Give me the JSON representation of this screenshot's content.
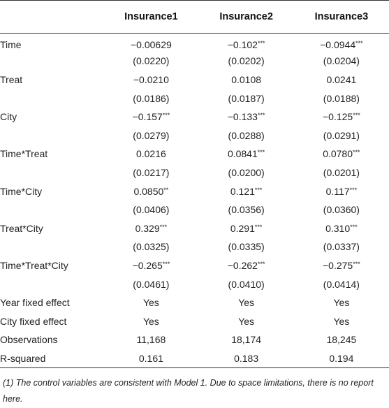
{
  "table": {
    "columns": [
      "",
      "Insurance1",
      "Insurance2",
      "Insurance3"
    ],
    "rows": [
      {
        "label": "Time",
        "values": [
          {
            "v": "−0.00629",
            "s": ""
          },
          {
            "v": "−0.102",
            "s": "***"
          },
          {
            "v": "−0.0944",
            "s": "***"
          }
        ]
      },
      {
        "label": "",
        "values": [
          {
            "v": "(0.0220)",
            "s": ""
          },
          {
            "v": "(0.0202)",
            "s": ""
          },
          {
            "v": "(0.0204)",
            "s": ""
          }
        ]
      },
      {
        "label": "Treat",
        "values": [
          {
            "v": "−0.0210",
            "s": ""
          },
          {
            "v": "0.0108",
            "s": ""
          },
          {
            "v": "0.0241",
            "s": ""
          }
        ]
      },
      {
        "label": "",
        "values": [
          {
            "v": "(0.0186)",
            "s": ""
          },
          {
            "v": "(0.0187)",
            "s": ""
          },
          {
            "v": "(0.0188)",
            "s": ""
          }
        ]
      },
      {
        "label": "City",
        "values": [
          {
            "v": "−0.157",
            "s": "***"
          },
          {
            "v": "−0.133",
            "s": "***"
          },
          {
            "v": "−0.125",
            "s": "***"
          }
        ]
      },
      {
        "label": "",
        "values": [
          {
            "v": "(0.0279)",
            "s": ""
          },
          {
            "v": "(0.0288)",
            "s": ""
          },
          {
            "v": "(0.0291)",
            "s": ""
          }
        ]
      },
      {
        "label": "Time*Treat",
        "values": [
          {
            "v": "0.0216",
            "s": ""
          },
          {
            "v": "0.0841",
            "s": "***"
          },
          {
            "v": "0.0780",
            "s": "***"
          }
        ]
      },
      {
        "label": "",
        "values": [
          {
            "v": "(0.0217)",
            "s": ""
          },
          {
            "v": "(0.0200)",
            "s": ""
          },
          {
            "v": "(0.0201)",
            "s": ""
          }
        ]
      },
      {
        "label": "Time*City",
        "values": [
          {
            "v": "0.0850",
            "s": "**"
          },
          {
            "v": "0.121",
            "s": "***"
          },
          {
            "v": "0.117",
            "s": "***"
          }
        ]
      },
      {
        "label": "",
        "values": [
          {
            "v": "(0.0406)",
            "s": ""
          },
          {
            "v": "(0.0356)",
            "s": ""
          },
          {
            "v": "(0.0360)",
            "s": ""
          }
        ]
      },
      {
        "label": "Treat*City",
        "values": [
          {
            "v": "0.329",
            "s": "***"
          },
          {
            "v": "0.291",
            "s": "***"
          },
          {
            "v": "0.310",
            "s": "***"
          }
        ]
      },
      {
        "label": "",
        "values": [
          {
            "v": "(0.0325)",
            "s": ""
          },
          {
            "v": "(0.0335)",
            "s": ""
          },
          {
            "v": "(0.0337)",
            "s": ""
          }
        ]
      },
      {
        "label": "Time*Treat*City",
        "values": [
          {
            "v": "−0.265",
            "s": "***"
          },
          {
            "v": "−0.262",
            "s": "***"
          },
          {
            "v": "−0.275",
            "s": "***"
          }
        ]
      },
      {
        "label": "",
        "values": [
          {
            "v": "(0.0461)",
            "s": ""
          },
          {
            "v": "(0.0410)",
            "s": ""
          },
          {
            "v": "(0.0414)",
            "s": ""
          }
        ]
      },
      {
        "label": "Year fixed effect",
        "values": [
          {
            "v": "Yes",
            "s": ""
          },
          {
            "v": "Yes",
            "s": ""
          },
          {
            "v": "Yes",
            "s": ""
          }
        ]
      },
      {
        "label": "City fixed effect",
        "values": [
          {
            "v": "Yes",
            "s": ""
          },
          {
            "v": "Yes",
            "s": ""
          },
          {
            "v": "Yes",
            "s": ""
          }
        ]
      },
      {
        "label": "Observations",
        "values": [
          {
            "v": "11,168",
            "s": ""
          },
          {
            "v": "18,174",
            "s": ""
          },
          {
            "v": "18,245",
            "s": ""
          }
        ]
      },
      {
        "label": "R-squared",
        "values": [
          {
            "v": "0.161",
            "s": ""
          },
          {
            "v": "0.183",
            "s": ""
          },
          {
            "v": "0.194",
            "s": ""
          }
        ]
      }
    ]
  },
  "note": "(1) The control variables are consistent with Model 1. Due to space limitations, there is no report here."
}
